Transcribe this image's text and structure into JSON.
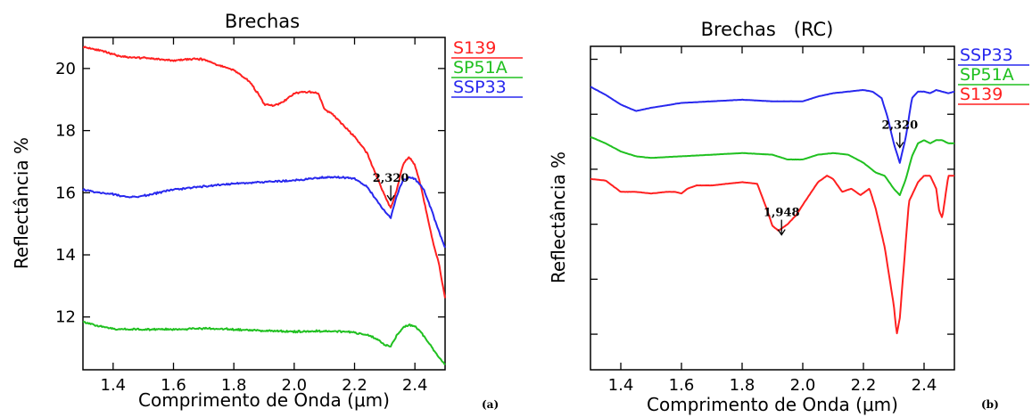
{
  "chart_data": [
    {
      "type": "line",
      "panel_label": "(a)",
      "title": "Brechas",
      "xlabel": "Comprimento de Onda (μm)",
      "ylabel": "Reflectância %",
      "xlim": [
        1.3,
        2.5
      ],
      "ylim": [
        10.3,
        21.0
      ],
      "xticks": [
        1.4,
        1.6,
        1.8,
        2.0,
        2.2,
        2.4
      ],
      "yticks": [
        12,
        14,
        16,
        18,
        20
      ],
      "show_ytick_labels": true,
      "grid": false,
      "legend_position": "outside-top-right",
      "series": [
        {
          "name": "S139",
          "color": "#ff2020",
          "x": [
            1.3,
            1.35,
            1.4,
            1.45,
            1.5,
            1.55,
            1.6,
            1.65,
            1.7,
            1.75,
            1.8,
            1.85,
            1.88,
            1.9,
            1.93,
            1.96,
            2.0,
            2.05,
            2.08,
            2.1,
            2.13,
            2.16,
            2.2,
            2.24,
            2.27,
            2.3,
            2.32,
            2.34,
            2.36,
            2.38,
            2.4,
            2.42,
            2.44,
            2.46,
            2.48,
            2.5
          ],
          "y": [
            20.7,
            20.6,
            20.45,
            20.35,
            20.35,
            20.3,
            20.25,
            20.3,
            20.3,
            20.1,
            19.95,
            19.6,
            19.2,
            18.85,
            18.8,
            18.9,
            19.2,
            19.25,
            19.2,
            18.7,
            18.5,
            18.2,
            17.8,
            17.3,
            16.6,
            15.9,
            15.5,
            16.1,
            16.9,
            17.15,
            16.9,
            16.2,
            15.3,
            14.4,
            13.7,
            12.6
          ]
        },
        {
          "name": "SP51A",
          "color": "#20c020",
          "x": [
            1.3,
            1.35,
            1.4,
            1.5,
            1.6,
            1.7,
            1.8,
            1.9,
            2.0,
            2.1,
            2.2,
            2.25,
            2.28,
            2.3,
            2.32,
            2.34,
            2.36,
            2.38,
            2.4,
            2.42,
            2.45,
            2.48,
            2.5
          ],
          "y": [
            11.85,
            11.7,
            11.62,
            11.6,
            11.6,
            11.63,
            11.6,
            11.56,
            11.53,
            11.55,
            11.5,
            11.4,
            11.25,
            11.1,
            11.05,
            11.4,
            11.65,
            11.75,
            11.7,
            11.5,
            11.1,
            10.7,
            10.45
          ]
        },
        {
          "name": "SSP33",
          "color": "#2828ee",
          "x": [
            1.3,
            1.35,
            1.4,
            1.45,
            1.5,
            1.6,
            1.7,
            1.8,
            1.9,
            2.0,
            2.1,
            2.15,
            2.2,
            2.24,
            2.27,
            2.3,
            2.32,
            2.34,
            2.36,
            2.38,
            2.4,
            2.43,
            2.46,
            2.5
          ],
          "y": [
            16.1,
            16.0,
            15.95,
            15.85,
            15.9,
            16.1,
            16.2,
            16.3,
            16.35,
            16.4,
            16.5,
            16.5,
            16.45,
            16.2,
            15.8,
            15.4,
            15.2,
            15.9,
            16.4,
            16.5,
            16.45,
            16.1,
            15.3,
            14.2
          ]
        }
      ],
      "annotations": [
        {
          "text": "2,320",
          "x": 2.32,
          "y": 16.35
        }
      ]
    },
    {
      "type": "line",
      "panel_label": "(b)",
      "title": "Brechas   (RC)",
      "xlabel": "Comprimento de Onda (μm)",
      "ylabel": "Reflectância %",
      "xlim": [
        1.3,
        2.5
      ],
      "ylim": [
        0,
        1
      ],
      "xticks": [
        1.4,
        1.6,
        1.8,
        2.0,
        2.2,
        2.4
      ],
      "yticks": [
        0.11,
        0.28,
        0.45,
        0.62,
        0.79,
        0.96
      ],
      "show_ytick_labels": false,
      "grid": false,
      "legend_position": "outside-top-right",
      "series": [
        {
          "name": "SSP33",
          "color": "#2828ee",
          "x": [
            1.3,
            1.35,
            1.4,
            1.45,
            1.5,
            1.6,
            1.7,
            1.8,
            1.9,
            2.0,
            2.05,
            2.1,
            2.15,
            2.2,
            2.23,
            2.26,
            2.28,
            2.3,
            2.32,
            2.34,
            2.36,
            2.38,
            2.4,
            2.42,
            2.44,
            2.46,
            2.48,
            2.5
          ],
          "y": [
            0.875,
            0.85,
            0.82,
            0.8,
            0.81,
            0.825,
            0.83,
            0.835,
            0.83,
            0.83,
            0.845,
            0.855,
            0.86,
            0.865,
            0.86,
            0.84,
            0.78,
            0.7,
            0.64,
            0.72,
            0.84,
            0.86,
            0.86,
            0.855,
            0.865,
            0.86,
            0.855,
            0.86
          ]
        },
        {
          "name": "SP51A",
          "color": "#20c020",
          "x": [
            1.3,
            1.35,
            1.4,
            1.45,
            1.5,
            1.6,
            1.7,
            1.8,
            1.9,
            1.95,
            2.0,
            2.05,
            2.1,
            2.15,
            2.2,
            2.24,
            2.27,
            2.3,
            2.32,
            2.34,
            2.36,
            2.38,
            2.4,
            2.42,
            2.44,
            2.46,
            2.48,
            2.5
          ],
          "y": [
            0.72,
            0.7,
            0.675,
            0.66,
            0.655,
            0.66,
            0.665,
            0.67,
            0.665,
            0.65,
            0.65,
            0.665,
            0.67,
            0.665,
            0.64,
            0.61,
            0.6,
            0.56,
            0.54,
            0.59,
            0.66,
            0.7,
            0.71,
            0.7,
            0.71,
            0.71,
            0.7,
            0.7
          ]
        },
        {
          "name": "S139",
          "color": "#ff2020",
          "x": [
            1.3,
            1.35,
            1.4,
            1.45,
            1.5,
            1.55,
            1.58,
            1.6,
            1.62,
            1.65,
            1.7,
            1.75,
            1.8,
            1.85,
            1.88,
            1.9,
            1.92,
            1.95,
            1.98,
            2.0,
            2.05,
            2.08,
            2.1,
            2.13,
            2.16,
            2.19,
            2.22,
            2.24,
            2.27,
            2.3,
            2.31,
            2.32,
            2.33,
            2.35,
            2.38,
            2.4,
            2.42,
            2.44,
            2.45,
            2.46,
            2.48,
            2.5
          ],
          "y": [
            0.59,
            0.585,
            0.55,
            0.55,
            0.545,
            0.55,
            0.55,
            0.545,
            0.56,
            0.57,
            0.57,
            0.575,
            0.58,
            0.575,
            0.5,
            0.445,
            0.43,
            0.45,
            0.48,
            0.51,
            0.58,
            0.6,
            0.59,
            0.55,
            0.56,
            0.54,
            0.56,
            0.5,
            0.38,
            0.2,
            0.11,
            0.16,
            0.28,
            0.52,
            0.58,
            0.6,
            0.6,
            0.56,
            0.49,
            0.47,
            0.6,
            0.6
          ]
        }
      ],
      "annotations": [
        {
          "text": "2,320",
          "x": 2.32,
          "y": 0.745
        },
        {
          "text": "1,948",
          "x": 1.93,
          "y": 0.475
        }
      ]
    }
  ]
}
